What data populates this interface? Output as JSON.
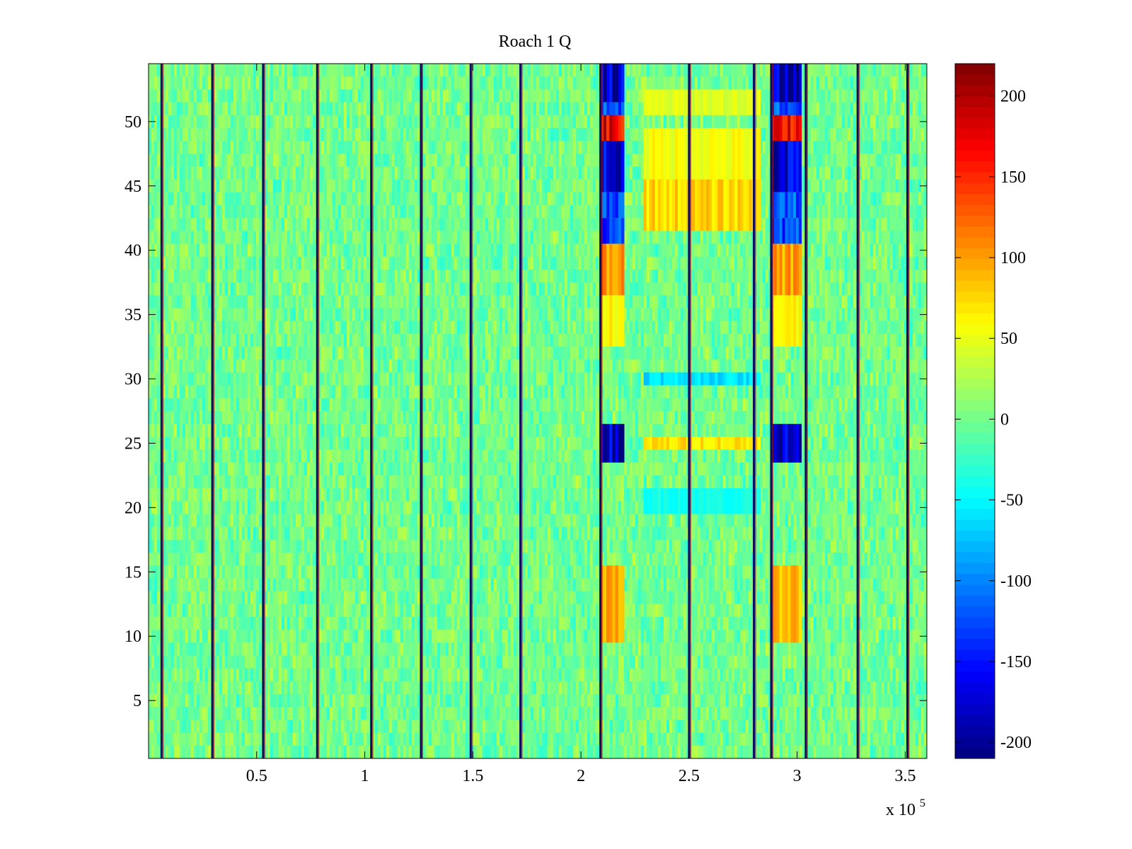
{
  "chart_data": {
    "type": "heatmap",
    "title": "Roach 1 Q",
    "xlabel": "",
    "ylabel": "",
    "x_multiplier_label": "x 10",
    "x_multiplier_exponent": "5",
    "xlim": [
      0,
      360000
    ],
    "ylim": [
      0.5,
      54.5
    ],
    "x_ticks": [
      {
        "value": 50000,
        "label": "0.5"
      },
      {
        "value": 100000,
        "label": "1"
      },
      {
        "value": 150000,
        "label": "1.5"
      },
      {
        "value": 200000,
        "label": "2"
      },
      {
        "value": 250000,
        "label": "2.5"
      },
      {
        "value": 300000,
        "label": "3"
      },
      {
        "value": 350000,
        "label": "3.5"
      }
    ],
    "y_ticks": [
      {
        "value": 5,
        "label": "5"
      },
      {
        "value": 10,
        "label": "10"
      },
      {
        "value": 15,
        "label": "15"
      },
      {
        "value": 20,
        "label": "20"
      },
      {
        "value": 25,
        "label": "25"
      },
      {
        "value": 30,
        "label": "30"
      },
      {
        "value": 35,
        "label": "35"
      },
      {
        "value": 40,
        "label": "40"
      },
      {
        "value": 45,
        "label": "45"
      },
      {
        "value": 50,
        "label": "50"
      }
    ],
    "colorbar": {
      "colormap": "jet",
      "range": [
        -210,
        220
      ],
      "ticks": [
        {
          "value": 200,
          "label": "200"
        },
        {
          "value": 150,
          "label": "150"
        },
        {
          "value": 100,
          "label": "100"
        },
        {
          "value": 50,
          "label": "50"
        },
        {
          "value": 0,
          "label": "0"
        },
        {
          "value": -50,
          "label": "-50"
        },
        {
          "value": -100,
          "label": "-100"
        },
        {
          "value": -150,
          "label": "-150"
        },
        {
          "value": -200,
          "label": "-200"
        }
      ]
    },
    "rows": 54,
    "background_value": 0,
    "noise_amplitude": 22,
    "vertical_lines_x": [
      6000,
      29500,
      53000,
      78000,
      103000,
      126000,
      149000,
      172000,
      209000,
      250000,
      280000,
      288000,
      304000,
      328000,
      351000
    ],
    "blocks": [
      {
        "x": [
          209000,
          220000
        ],
        "rows": [
          52,
          54
        ],
        "value": -190
      },
      {
        "x": [
          209000,
          220000
        ],
        "rows": [
          50,
          51
        ],
        "value": -120
      },
      {
        "x": [
          209000,
          220000
        ],
        "rows": [
          49,
          50
        ],
        "value": 170
      },
      {
        "x": [
          209000,
          220000
        ],
        "rows": [
          45,
          48
        ],
        "value": -180
      },
      {
        "x": [
          209000,
          220000
        ],
        "rows": [
          43,
          44
        ],
        "value": -120
      },
      {
        "x": [
          209000,
          220000
        ],
        "rows": [
          41,
          42
        ],
        "value": -130
      },
      {
        "x": [
          209000,
          220000
        ],
        "rows": [
          37,
          40
        ],
        "value": 100
      },
      {
        "x": [
          209000,
          220000
        ],
        "rows": [
          33,
          36
        ],
        "value": 60
      },
      {
        "x": [
          209000,
          220000
        ],
        "rows": [
          24,
          26
        ],
        "value": -190
      },
      {
        "x": [
          209000,
          220000
        ],
        "rows": [
          10,
          15
        ],
        "value": 90
      },
      {
        "x": [
          288000,
          302000
        ],
        "rows": [
          52,
          54
        ],
        "value": -190
      },
      {
        "x": [
          288000,
          302000
        ],
        "rows": [
          50,
          51
        ],
        "value": -120
      },
      {
        "x": [
          288000,
          302000
        ],
        "rows": [
          49,
          50
        ],
        "value": 170
      },
      {
        "x": [
          288000,
          302000
        ],
        "rows": [
          45,
          48
        ],
        "value": -180
      },
      {
        "x": [
          288000,
          302000
        ],
        "rows": [
          43,
          44
        ],
        "value": -120
      },
      {
        "x": [
          288000,
          302000
        ],
        "rows": [
          41,
          42
        ],
        "value": -130
      },
      {
        "x": [
          288000,
          302000
        ],
        "rows": [
          37,
          40
        ],
        "value": 100
      },
      {
        "x": [
          288000,
          302000
        ],
        "rows": [
          33,
          36
        ],
        "value": 60
      },
      {
        "x": [
          288000,
          302000
        ],
        "rows": [
          24,
          26
        ],
        "value": -190
      },
      {
        "x": [
          288000,
          302000
        ],
        "rows": [
          10,
          15
        ],
        "value": 90
      },
      {
        "x": [
          229000,
          283000
        ],
        "rows": [
          42,
          45
        ],
        "value": 75
      },
      {
        "x": [
          229000,
          283000
        ],
        "rows": [
          46,
          49
        ],
        "value": 55
      },
      {
        "x": [
          229000,
          283000
        ],
        "rows": [
          51,
          52
        ],
        "value": 45
      },
      {
        "x": [
          229000,
          283000
        ],
        "rows": [
          25,
          25
        ],
        "value": 70
      },
      {
        "x": [
          229000,
          283000
        ],
        "rows": [
          30,
          30
        ],
        "value": -60
      },
      {
        "x": [
          229000,
          283000
        ],
        "rows": [
          20,
          21
        ],
        "value": -40
      }
    ]
  }
}
